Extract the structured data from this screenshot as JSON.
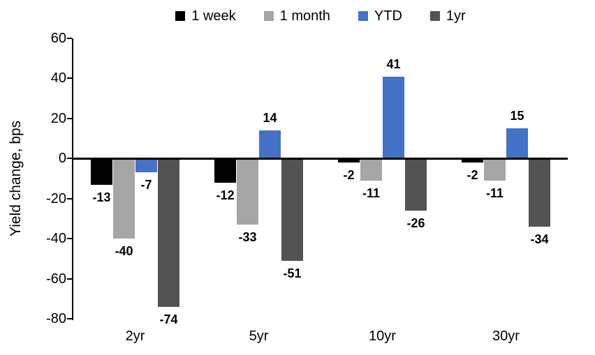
{
  "chart_data": {
    "type": "bar",
    "title": "",
    "xlabel": "",
    "ylabel": "Yield change, bps",
    "categories": [
      "2yr",
      "5yr",
      "10yr",
      "30yr"
    ],
    "series": [
      {
        "name": "1 week",
        "color": "#000000",
        "values": [
          -13,
          -12,
          -2,
          -2
        ]
      },
      {
        "name": "1 month",
        "color": "#A5A5A5",
        "values": [
          -40,
          -33,
          -11,
          -11
        ]
      },
      {
        "name": "YTD",
        "color": "#4472C4",
        "values": [
          -7,
          14,
          41,
          15
        ]
      },
      {
        "name": "1yr",
        "color": "#535353",
        "values": [
          -74,
          -51,
          -26,
          -34
        ]
      }
    ],
    "ylim": [
      -80,
      60
    ],
    "yticks": [
      60,
      40,
      20,
      0,
      -20,
      -40,
      -60,
      -80
    ],
    "legend_position": "top",
    "grid": false,
    "axis_color": "#000000",
    "label_color": "#000000"
  }
}
